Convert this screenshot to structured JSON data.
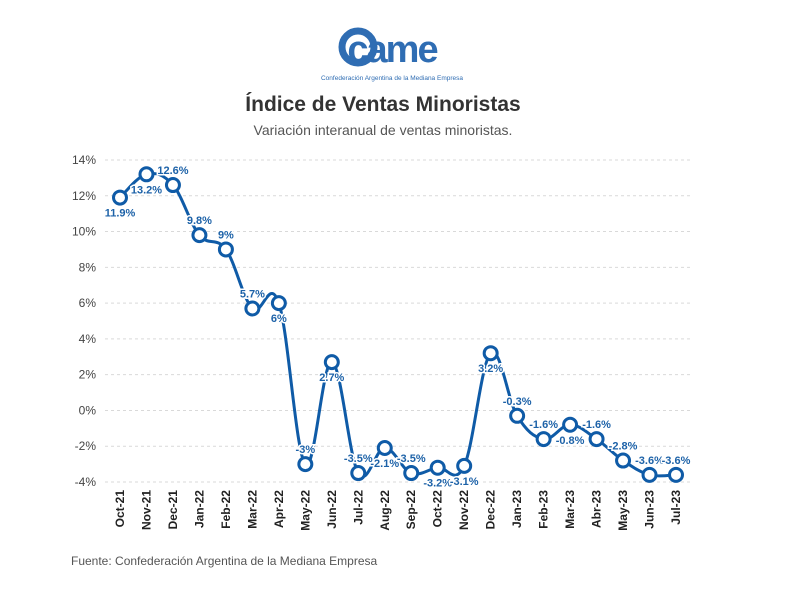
{
  "logo": {
    "wordmark": "came",
    "tagline": "Confederación Argentina de la Mediana Empresa"
  },
  "source_note": "Fuente: Confederación Argentina de la Mediana Empresa",
  "colors": {
    "series": "#0f5ba7",
    "label": "#1d62a8",
    "grid": "#d9d9d9",
    "title": "#333333",
    "logo": "#2f6db3"
  },
  "chart_data": {
    "type": "line",
    "title": "Índice de Ventas Minoristas",
    "subtitle": "Variación interanual de ventas minoristas.",
    "xlabel": "",
    "ylabel": "",
    "ylim": [
      -4,
      14
    ],
    "yticks": [
      -4,
      -2,
      0,
      2,
      4,
      6,
      8,
      10,
      12,
      14
    ],
    "ytick_labels": [
      "-4%",
      "-2%",
      "0%",
      "2%",
      "4%",
      "6%",
      "8%",
      "10%",
      "12%",
      "14%"
    ],
    "grid": true,
    "categories": [
      "Oct-21",
      "Nov-21",
      "Dec-21",
      "Jan-22",
      "Feb-22",
      "Mar-22",
      "Apr-22",
      "May-22",
      "Jun-22",
      "Jul-22",
      "Aug-22",
      "Sep-22",
      "Oct-22",
      "Nov-22",
      "Dec-22",
      "Jan-23",
      "Feb-23",
      "Mar-23",
      "Abr-23",
      "May-23",
      "Jun-23",
      "Jul-23"
    ],
    "series": [
      {
        "name": "Variación interanual",
        "values": [
          11.9,
          13.2,
          12.6,
          9.8,
          9,
          5.7,
          6,
          -3,
          2.7,
          -3.5,
          -2.1,
          -3.5,
          -3.2,
          -3.1,
          3.2,
          -0.3,
          -1.6,
          -0.8,
          -1.6,
          -2.8,
          -3.6,
          -3.6
        ],
        "data_labels": [
          "11.9%",
          "13.2%",
          "12.6%",
          "9.8%",
          "9%",
          "5.7%",
          "6%",
          "-3%",
          "2.7%",
          "-3.5%",
          "-2.1%",
          "-3.5%",
          "-3.2%",
          "-3.1%",
          "3.2%",
          "-0.3%",
          "-1.6%",
          "-0.8%",
          "-1.6%",
          "-2.8%",
          "-3.6%",
          "-3.6%"
        ]
      }
    ]
  }
}
